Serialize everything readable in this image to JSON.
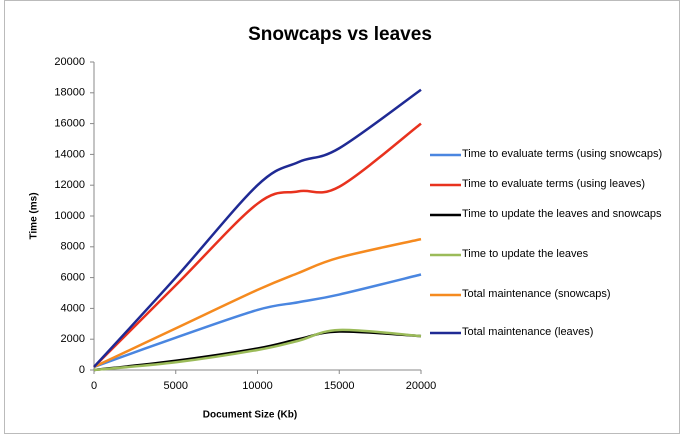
{
  "chart_data": {
    "type": "line",
    "title": "Snowcaps vs leaves",
    "x_label": "Document Size (Kb)",
    "y_label": "Time (ms)",
    "x": [
      0,
      5000,
      10000,
      12500,
      15000,
      20000
    ],
    "xlim": [
      0,
      20000
    ],
    "xticks": [
      0,
      5000,
      10000,
      15000,
      20000
    ],
    "ylim": [
      0,
      20000
    ],
    "yticks": [
      0,
      2000,
      4000,
      6000,
      8000,
      10000,
      12000,
      14000,
      16000,
      18000,
      20000
    ],
    "grid": false,
    "legend": "right",
    "series": [
      {
        "name": "Time to evaluate terms (using snowcaps)",
        "color": "#4a86e0",
        "values": [
          200,
          2100,
          3900,
          4400,
          4900,
          6200
        ]
      },
      {
        "name": "Time to evaluate terms (using leaves)",
        "color": "#e8321e",
        "values": [
          200,
          5500,
          10800,
          11600,
          11900,
          16000
        ]
      },
      {
        "name": "Time to update the leaves and snowcaps",
        "color": "#000000",
        "values": [
          0,
          600,
          1400,
          2000,
          2500,
          2200
        ]
      },
      {
        "name": "Time to update the leaves",
        "color": "#9bbb59",
        "values": [
          0,
          500,
          1300,
          1900,
          2600,
          2200
        ]
      },
      {
        "name": "Total maintenance (snowcaps)",
        "color": "#f58a1f",
        "values": [
          200,
          2700,
          5200,
          6300,
          7300,
          8500
        ]
      },
      {
        "name": "Total maintenance (leaves)",
        "color": "#1f2a94",
        "values": [
          200,
          6000,
          12000,
          13500,
          14400,
          18200
        ]
      }
    ]
  }
}
